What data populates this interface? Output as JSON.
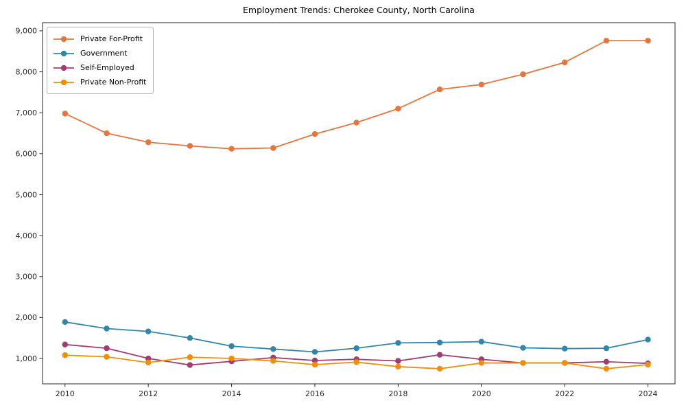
{
  "chart_data": {
    "type": "line",
    "title": "Employment Trends: Cherokee County, North Carolina",
    "xlabel": "",
    "ylabel": "",
    "x": [
      2010,
      2011,
      2012,
      2013,
      2014,
      2015,
      2016,
      2017,
      2018,
      2019,
      2020,
      2021,
      2022,
      2023,
      2024
    ],
    "series": [
      {
        "name": "Private For-Profit",
        "color": "#E8743B",
        "values": [
          6980,
          6500,
          6280,
          6190,
          6120,
          6140,
          6480,
          6760,
          7100,
          7570,
          7690,
          7940,
          8230,
          8760,
          8760
        ]
      },
      {
        "name": "Government",
        "color": "#2E86AB",
        "values": [
          1890,
          1730,
          1660,
          1500,
          1300,
          1230,
          1160,
          1250,
          1380,
          1390,
          1410,
          1260,
          1240,
          1250,
          1460
        ]
      },
      {
        "name": "Self-Employed",
        "color": "#A23B72",
        "values": [
          1340,
          1250,
          1000,
          840,
          930,
          1020,
          950,
          980,
          940,
          1090,
          980,
          890,
          890,
          920,
          880
        ]
      },
      {
        "name": "Private Non-Profit",
        "color": "#F18F01",
        "values": [
          1080,
          1040,
          900,
          1030,
          1000,
          940,
          850,
          910,
          800,
          750,
          890,
          890,
          890,
          750,
          850
        ]
      }
    ],
    "x_ticks": [
      2010,
      2012,
      2014,
      2016,
      2018,
      2020,
      2022,
      2024
    ],
    "x_tick_labels": [
      "2010",
      "2012",
      "2014",
      "2016",
      "2018",
      "2020",
      "2022",
      "2024"
    ],
    "y_ticks": [
      1000,
      2000,
      3000,
      4000,
      5000,
      6000,
      7000,
      8000,
      9000
    ],
    "y_tick_labels": [
      "1,000",
      "2,000",
      "3,000",
      "4,000",
      "5,000",
      "6,000",
      "7,000",
      "8,000",
      "9,000"
    ],
    "xlim": [
      2009.46,
      2024.65
    ],
    "ylim": [
      380,
      9200
    ],
    "grid": false,
    "legend_position": "upper left",
    "marker": "circle",
    "line_width": 1.8,
    "marker_radius": 4.2,
    "axis_color": "#262626",
    "tick_label_color": "#262626",
    "background": "#ffffff"
  }
}
